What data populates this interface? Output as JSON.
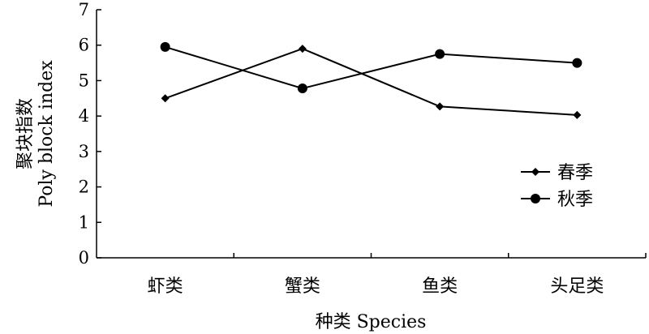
{
  "chart_data": {
    "type": "line",
    "categories": [
      "虾类",
      "蟹类",
      "鱼类",
      "头足类"
    ],
    "series": [
      {
        "name": "春季",
        "marker": "diamond",
        "values": [
          4.5,
          5.9,
          4.27,
          4.03
        ]
      },
      {
        "name": "秋季",
        "marker": "circle",
        "values": [
          5.95,
          4.78,
          5.75,
          5.5
        ]
      }
    ],
    "xlabel": "种类 Species",
    "ylabel_line1": "聚块指数",
    "ylabel_line2": "Poly block index",
    "ylim": [
      0,
      7
    ],
    "yticks": [
      "0",
      "1",
      "2",
      "3",
      "4",
      "5",
      "6",
      "7"
    ],
    "grid": false,
    "legend_position": "right",
    "line_color": "#000000"
  }
}
